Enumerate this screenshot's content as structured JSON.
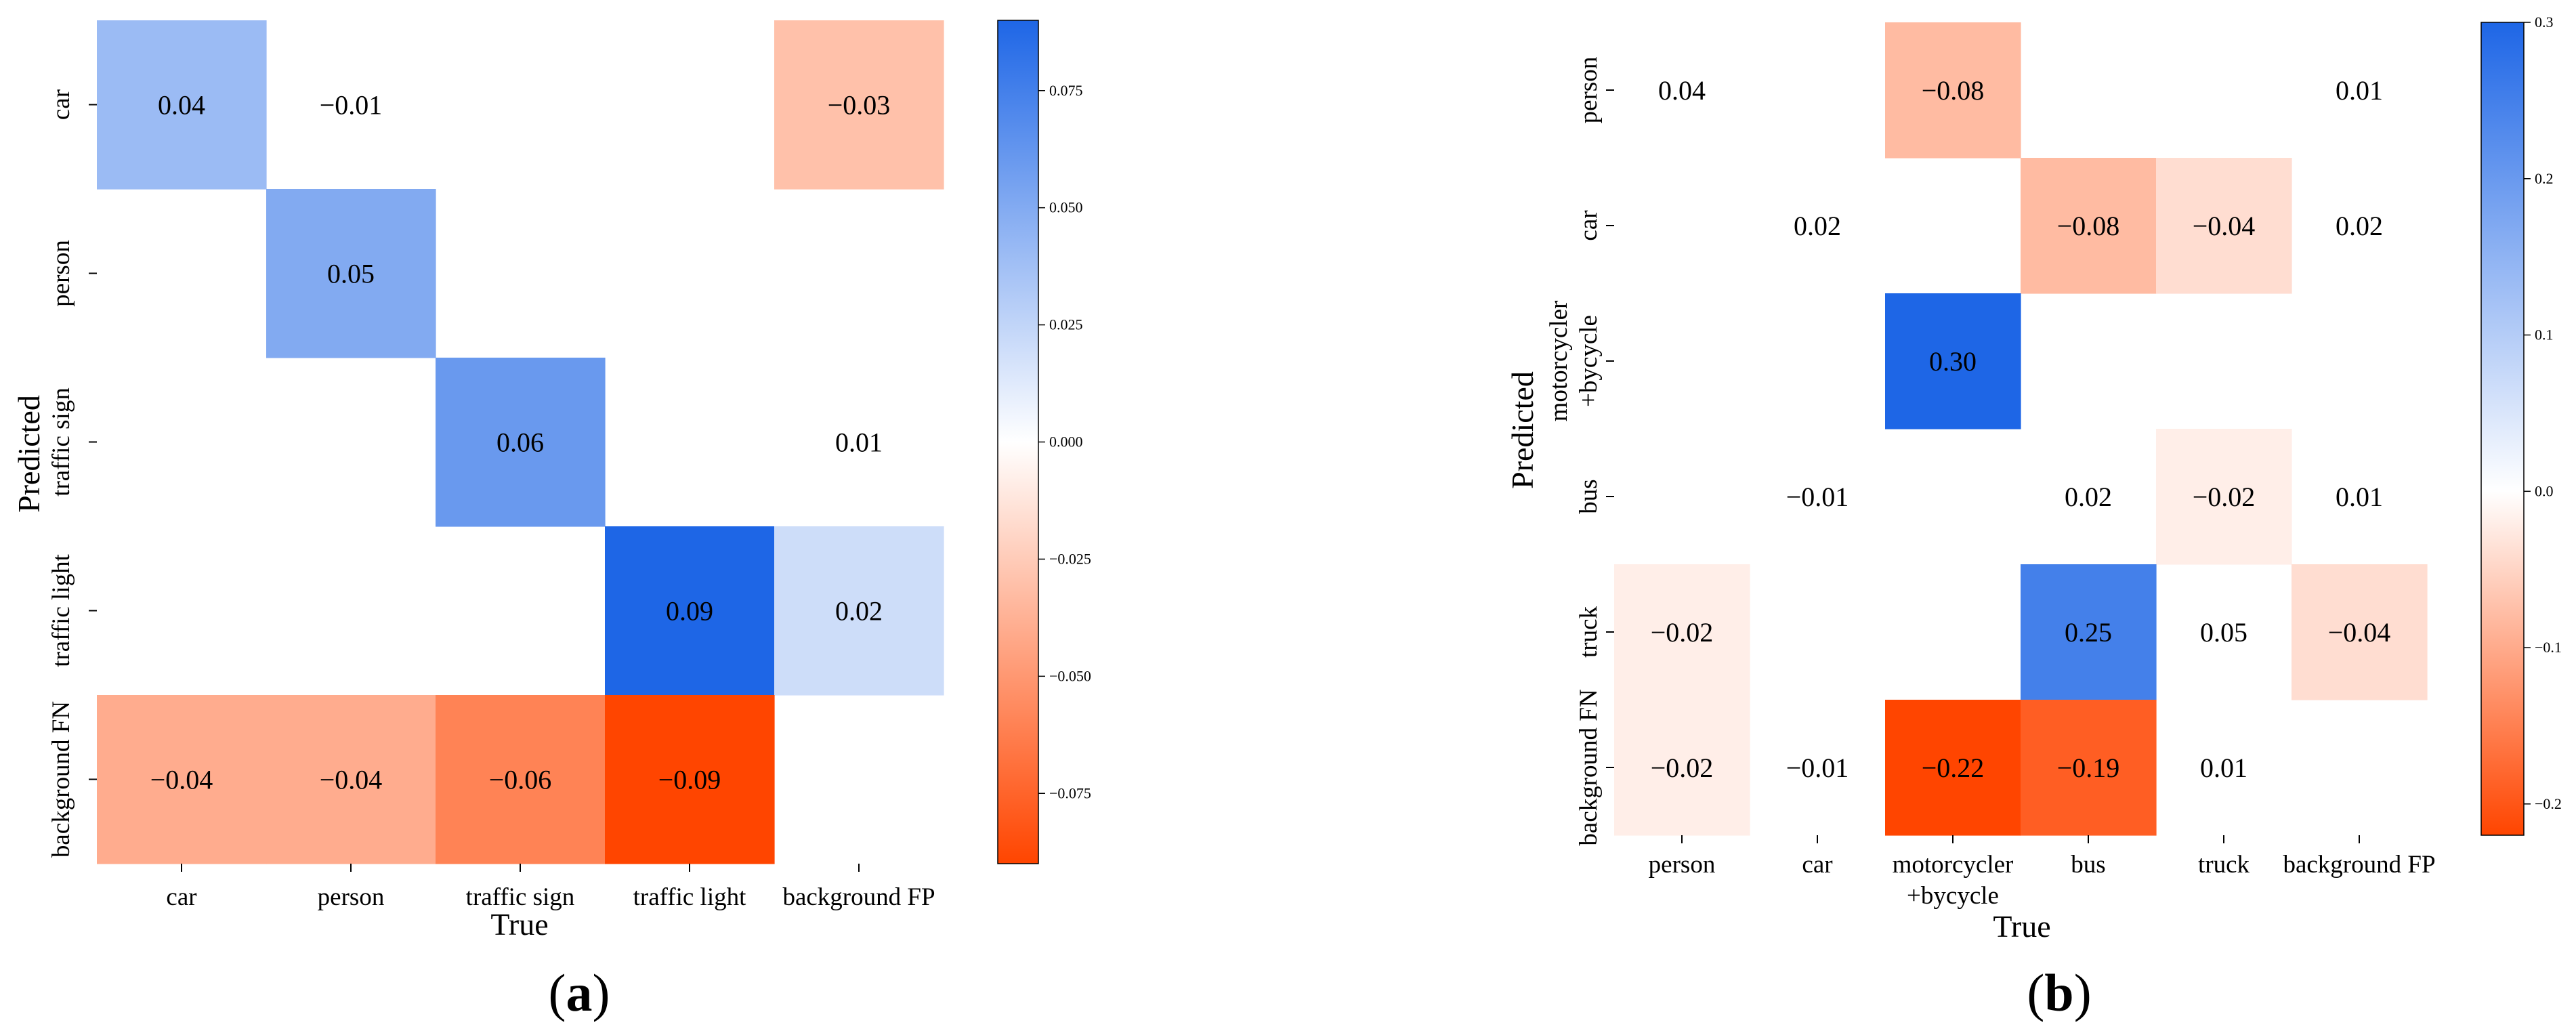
{
  "chart_data": [
    {
      "type": "heatmap",
      "panel_label": "(a)",
      "panel_letter": "a",
      "xlabel": "True",
      "ylabel": "Predicted",
      "x_categories": [
        [
          "car"
        ],
        [
          "person"
        ],
        [
          "traffic sign"
        ],
        [
          "traffic light"
        ],
        [
          "background FP"
        ]
      ],
      "y_categories": [
        [
          "car"
        ],
        [
          "person"
        ],
        [
          "traffic sign"
        ],
        [
          "traffic light"
        ],
        [
          "background FN"
        ]
      ],
      "values": [
        [
          0.04,
          -0.01,
          null,
          null,
          -0.03
        ],
        [
          null,
          0.05,
          null,
          null,
          null
        ],
        [
          null,
          null,
          0.06,
          null,
          0.01
        ],
        [
          null,
          null,
          null,
          0.09,
          0.02
        ],
        [
          -0.04,
          -0.04,
          -0.06,
          -0.09,
          null
        ]
      ],
      "cell_labels": [
        [
          "0.04",
          "−0.01",
          "",
          "",
          "−0.03"
        ],
        [
          "",
          "0.05",
          "",
          "",
          ""
        ],
        [
          "",
          "",
          "0.06",
          "",
          "0.01"
        ],
        [
          "",
          "",
          "",
          "0.09",
          "0.02"
        ],
        [
          "−0.04",
          "−0.04",
          "−0.06",
          "−0.09",
          ""
        ]
      ],
      "colored_mask": [
        [
          true,
          false,
          false,
          false,
          true
        ],
        [
          false,
          true,
          false,
          false,
          false
        ],
        [
          false,
          false,
          true,
          false,
          false
        ],
        [
          false,
          false,
          false,
          true,
          true
        ],
        [
          true,
          true,
          true,
          true,
          false
        ]
      ],
      "colorbar": {
        "vmin": -0.09,
        "vmax": 0.09,
        "colormap": "orange-white-blue",
        "ticks": [
          -0.075,
          -0.05,
          -0.025,
          0.0,
          0.025,
          0.05,
          0.075
        ],
        "tick_labels": [
          "−0.075",
          "−0.050",
          "−0.025",
          "0.000",
          "0.025",
          "0.050",
          "0.075"
        ]
      }
    },
    {
      "type": "heatmap",
      "panel_label": "(b)",
      "panel_letter": "b",
      "xlabel": "True",
      "ylabel": "Predicted",
      "x_categories": [
        [
          "person"
        ],
        [
          "car"
        ],
        [
          "motorcycler",
          "+bycycle"
        ],
        [
          "bus"
        ],
        [
          "truck"
        ],
        [
          "background FP"
        ]
      ],
      "y_categories": [
        [
          "person"
        ],
        [
          "car"
        ],
        [
          "motorcycler",
          "+bycycle"
        ],
        [
          "bus"
        ],
        [
          "truck"
        ],
        [
          "background FN"
        ]
      ],
      "values": [
        [
          0.04,
          null,
          -0.08,
          null,
          null,
          0.01
        ],
        [
          null,
          0.02,
          null,
          -0.08,
          -0.04,
          0.02
        ],
        [
          null,
          null,
          0.3,
          null,
          null,
          null
        ],
        [
          null,
          -0.01,
          null,
          0.02,
          -0.02,
          0.01
        ],
        [
          -0.02,
          null,
          null,
          0.25,
          0.05,
          -0.04
        ],
        [
          -0.02,
          -0.01,
          -0.22,
          -0.19,
          0.01,
          null
        ]
      ],
      "cell_labels": [
        [
          "0.04",
          "",
          "−0.08",
          "",
          "",
          "0.01"
        ],
        [
          "",
          "0.02",
          "",
          "−0.08",
          "−0.04",
          "0.02"
        ],
        [
          "",
          "",
          "0.30",
          "",
          "",
          ""
        ],
        [
          "",
          "−0.01",
          "",
          "0.02",
          "−0.02",
          "0.01"
        ],
        [
          "−0.02",
          "",
          "",
          "0.25",
          "0.05",
          "−0.04"
        ],
        [
          "−0.02",
          "−0.01",
          "−0.22",
          "−0.19",
          "0.01",
          ""
        ]
      ],
      "colored_mask": [
        [
          false,
          false,
          true,
          false,
          false,
          false
        ],
        [
          false,
          false,
          false,
          true,
          true,
          false
        ],
        [
          false,
          false,
          true,
          false,
          false,
          false
        ],
        [
          false,
          false,
          false,
          false,
          true,
          false
        ],
        [
          true,
          false,
          false,
          true,
          false,
          true
        ],
        [
          true,
          false,
          true,
          true,
          false,
          false
        ]
      ],
      "colorbar": {
        "vmin": -0.22,
        "vmax": 0.3,
        "colormap": "orange-white-blue",
        "ticks": [
          -0.2,
          -0.1,
          0.0,
          0.1,
          0.2,
          0.3
        ],
        "tick_labels": [
          "−0.2",
          "−0.1",
          "0.0",
          "0.1",
          "0.2",
          "0.3"
        ]
      }
    }
  ],
  "colors": {
    "negative_extreme": "#ff4500",
    "neutral": "#ffffff",
    "positive_extreme": "#1e66e6"
  }
}
